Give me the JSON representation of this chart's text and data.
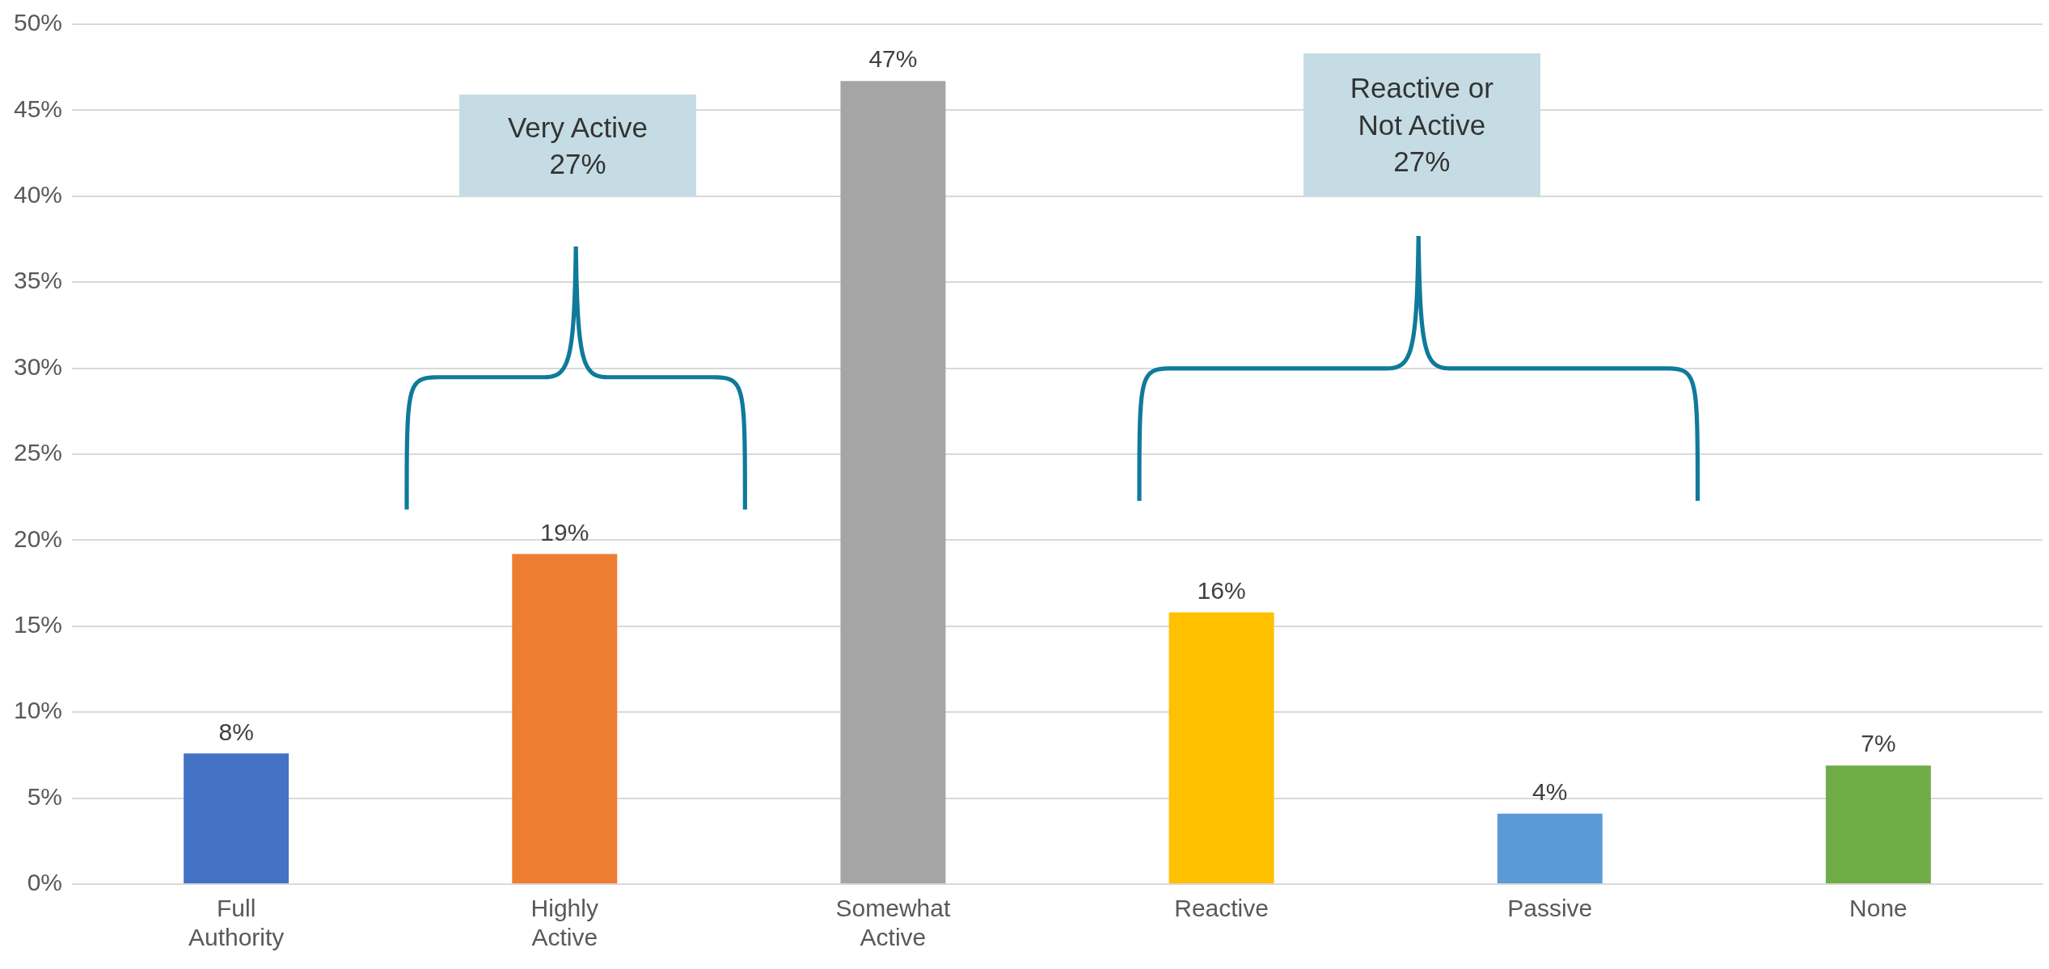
{
  "chart_data": {
    "type": "bar",
    "categories": [
      "Full Authority",
      "Highly Active",
      "Somewhat Active",
      "Reactive",
      "Passive",
      "None"
    ],
    "values": [
      7.6,
      19.2,
      46.7,
      15.8,
      4.1,
      6.9
    ],
    "colors": [
      "#4472c4",
      "#ed7d31",
      "#a5a5a5",
      "#ffc000",
      "#5b9bd5",
      "#70ad47"
    ],
    "value_labels": [
      "8%",
      "19%",
      "47%",
      "16%",
      "4%",
      "7%"
    ],
    "ylim": [
      0,
      50
    ],
    "yticks": [
      {
        "value": 0,
        "label": "0%"
      },
      {
        "value": 5,
        "label": "5%"
      },
      {
        "value": 10,
        "label": "10%"
      },
      {
        "value": 15,
        "label": "15%"
      },
      {
        "value": 20,
        "label": "20%"
      },
      {
        "value": 25,
        "label": "25%"
      },
      {
        "value": 30,
        "label": "30%"
      },
      {
        "value": 35,
        "label": "35%"
      },
      {
        "value": 40,
        "label": "40%"
      },
      {
        "value": 45,
        "label": "45%"
      },
      {
        "value": 50,
        "label": "50%"
      }
    ],
    "grid": "y",
    "legend": false,
    "annotations": [
      "Very Active\n27%",
      "Reactive or\nNot Active\n27%"
    ]
  }
}
